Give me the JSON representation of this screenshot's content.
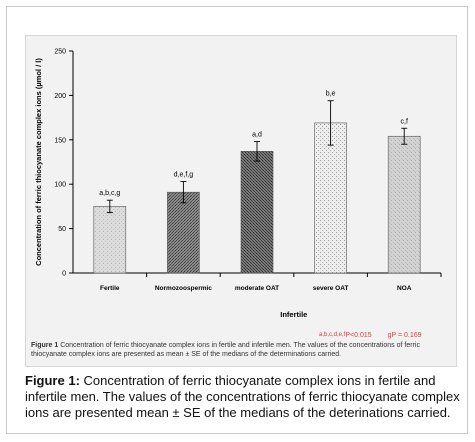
{
  "chart_data": {
    "type": "bar",
    "categories": [
      "Fertile",
      "Normozoospermic",
      "moderate OAT",
      "severe OAT",
      "NOA"
    ],
    "values": [
      75,
      91,
      137,
      169,
      154
    ],
    "errors": [
      7,
      12,
      11,
      25,
      9
    ],
    "labels": [
      "a,b,c,g",
      "d,e,f,g",
      "a,d",
      "b,e",
      "c,f"
    ],
    "group_label": "Infertile",
    "ylabel": "Concentration of ferric thiocyanate complex ions (µmol / l)",
    "ylim": [
      0,
      250
    ],
    "yticks": [
      0,
      50,
      100,
      150,
      200,
      250
    ],
    "grid": false,
    "fills": [
      "#d8d8d8",
      "#7a7a7a",
      "#6a6a6a",
      "#e6e6e6",
      "#cfcfcf"
    ]
  },
  "inner_caption": {
    "label": "Figure 1",
    "text": "Concentration of ferric thiocyanate complex ions in fertile and infertile men. The values of the concentrations of ferric thiocyanate complex ions are presented as mean ± SE of the medians of the determinations carried.",
    "sig_prefix": "a,b,c,d,e,f",
    "sig_a": "P<0.015",
    "sig_b": "gP = 0.169"
  },
  "main_caption": {
    "label": "Figure 1:",
    "text": "Concentration of ferric thiocyanate complex ions in fertile and infertile men. The values of the concentrations of ferric thiocyanate complex ions are presented mean ± SE of the medians of the deterinations carried."
  }
}
